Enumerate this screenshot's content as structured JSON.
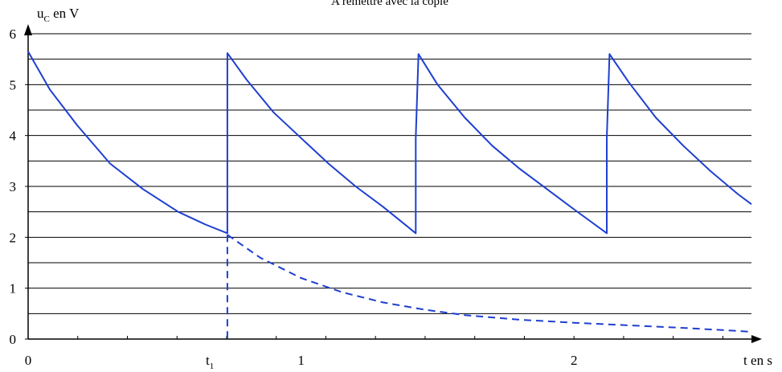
{
  "chart_data": {
    "type": "line",
    "title": "A remettre avec la copie",
    "ylabel": {
      "main": "u",
      "sub": "C",
      "rest": " en V"
    },
    "xlabel": "t en s",
    "xlim": [
      0,
      2.65
    ],
    "ylim": [
      0,
      6
    ],
    "y_ticks": [
      "0",
      "1",
      "2",
      "3",
      "4",
      "5",
      "6"
    ],
    "y_minor_step": 0.5,
    "x_ticks": [
      {
        "x": 0,
        "label": "0"
      },
      {
        "x": 1,
        "label": "1"
      },
      {
        "x": 2,
        "label": "2"
      }
    ],
    "x_minor_step": 0.1818,
    "x_marker": {
      "x": 0.73,
      "main": "t",
      "sub": "1"
    },
    "grid": true,
    "series": [
      {
        "style": "solid",
        "color": "#1f3fd0",
        "points": [
          [
            0,
            5.65
          ],
          [
            0.08,
            4.9
          ],
          [
            0.18,
            4.2
          ],
          [
            0.3,
            3.45
          ],
          [
            0.42,
            2.95
          ],
          [
            0.55,
            2.5
          ],
          [
            0.65,
            2.25
          ],
          [
            0.73,
            2.08
          ],
          [
            0.73,
            3.95
          ],
          [
            0.73,
            5.62
          ],
          [
            0.8,
            5.1
          ],
          [
            0.9,
            4.45
          ],
          [
            1.0,
            3.95
          ],
          [
            1.1,
            3.45
          ],
          [
            1.2,
            3.0
          ],
          [
            1.3,
            2.6
          ],
          [
            1.42,
            2.08
          ],
          [
            1.42,
            3.95
          ],
          [
            1.43,
            5.6
          ],
          [
            1.5,
            5.0
          ],
          [
            1.6,
            4.35
          ],
          [
            1.7,
            3.8
          ],
          [
            1.8,
            3.35
          ],
          [
            1.9,
            2.95
          ],
          [
            2.0,
            2.55
          ],
          [
            2.12,
            2.08
          ],
          [
            2.12,
            3.95
          ],
          [
            2.13,
            5.6
          ],
          [
            2.2,
            5.05
          ],
          [
            2.3,
            4.35
          ],
          [
            2.4,
            3.8
          ],
          [
            2.5,
            3.3
          ],
          [
            2.6,
            2.85
          ],
          [
            2.65,
            2.65
          ]
        ]
      },
      {
        "style": "dashed",
        "color": "#1f3fd0",
        "points": [
          [
            0.73,
            2.05
          ],
          [
            0.85,
            1.6
          ],
          [
            1.0,
            1.2
          ],
          [
            1.15,
            0.92
          ],
          [
            1.3,
            0.72
          ],
          [
            1.45,
            0.58
          ],
          [
            1.6,
            0.47
          ],
          [
            1.8,
            0.38
          ],
          [
            2.0,
            0.32
          ],
          [
            2.2,
            0.27
          ],
          [
            2.4,
            0.22
          ],
          [
            2.6,
            0.16
          ],
          [
            2.65,
            0.14
          ]
        ]
      },
      {
        "style": "dashed",
        "color": "#1f3fd0",
        "points": [
          [
            0.73,
            2.05
          ],
          [
            0.73,
            0
          ]
        ]
      }
    ]
  }
}
